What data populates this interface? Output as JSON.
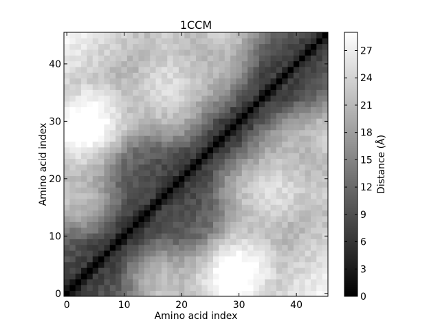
{
  "chart_data": {
    "type": "heatmap",
    "title": "1CCM",
    "xlabel": "Amino acid index",
    "ylabel": "Amino acid index",
    "n": 46,
    "xlim": [
      0,
      45
    ],
    "ylim": [
      0,
      45
    ],
    "x_ticks": [
      0,
      10,
      20,
      30,
      40
    ],
    "y_ticks": [
      0,
      10,
      20,
      30,
      40
    ],
    "colormap": "gray",
    "colorbar": {
      "label": "Distance (Å)",
      "min": 0,
      "max": 29,
      "ticks": [
        0,
        3,
        6,
        9,
        12,
        15,
        18,
        21,
        24,
        27
      ]
    },
    "features": {
      "diagonal_distance": 0,
      "max_distance_region": "residues 18 and 40-44 (~28 Å)",
      "secondary_max_region": "residues 40 and 18-20 (~27 Å)"
    }
  }
}
